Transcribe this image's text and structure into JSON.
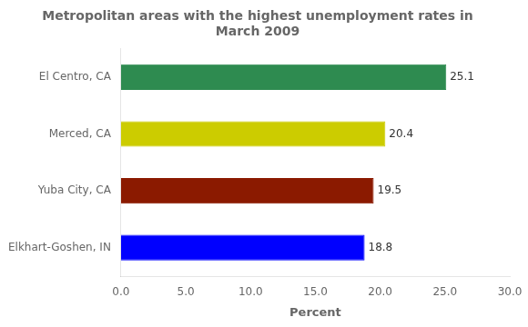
{
  "chart_data": {
    "type": "bar",
    "orientation": "horizontal",
    "title": "Metropolitan areas with the highest unemployment rates in\nMarch 2009",
    "categories": [
      "Elkhart-Goshen, IN",
      "Yuba City, CA",
      "Merced, CA",
      "El Centro, CA"
    ],
    "values": [
      18.8,
      19.5,
      20.4,
      25.1
    ],
    "colors": [
      "#0000ff",
      "#8b1a00",
      "#cccc00",
      "#2e8b50"
    ],
    "xlabel": "Percent",
    "xlim": [
      0,
      30
    ],
    "xticks": [
      {
        "value": 0,
        "label": "0.0"
      },
      {
        "value": 5,
        "label": "5.0"
      },
      {
        "value": 10,
        "label": "10.0"
      },
      {
        "value": 15,
        "label": "15.0"
      },
      {
        "value": 20,
        "label": "20.0"
      },
      {
        "value": 25,
        "label": "25.0"
      },
      {
        "value": 30,
        "label": "30.0"
      }
    ],
    "grid": false,
    "data_labels": true
  }
}
